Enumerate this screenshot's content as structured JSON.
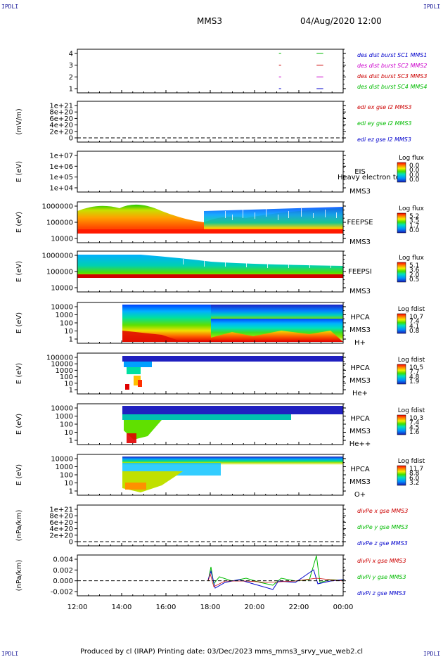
{
  "corner_marks": {
    "tl": "IPDLI",
    "tr": "IPDLI",
    "bl": "IPDLI",
    "br": "IPDLI"
  },
  "header": {
    "spacecraft": "MMS3",
    "datetime": "04/Aug/2020 12:00"
  },
  "footer": "Produced by cl (IRAP)   Printing date: 03/Dec/2023   mms_mms3_srvy_vue_web2.cl",
  "x_ticks": [
    "12:00",
    "14:00",
    "16:00",
    "18:00",
    "20:00",
    "22:00",
    "00:00"
  ],
  "chart_data": [
    {
      "id": "burst",
      "type": "line",
      "ylabel": "",
      "y_ticks": [
        "4",
        "3",
        "2",
        "1"
      ],
      "legend": [
        {
          "text": "des dist burst SC1 MMS1",
          "color": "#0000cc"
        },
        {
          "text": "des dist burst SC2 MMS2",
          "color": "#cc00cc"
        },
        {
          "text": "des dist burst SC3 MMS3",
          "color": "#cc0000"
        },
        {
          "text": "des dist burst SC4 MMS4",
          "color": "#00bb00"
        }
      ],
      "segments": [
        {
          "y": 4,
          "x": [
            21.1,
            21.2
          ],
          "color": "#00bb00"
        },
        {
          "y": 4,
          "x": [
            22.8,
            23.1
          ],
          "color": "#00bb00"
        },
        {
          "y": 3,
          "x": [
            21.1,
            21.2
          ],
          "color": "#cc0000"
        },
        {
          "y": 3,
          "x": [
            22.8,
            23.1
          ],
          "color": "#cc0000"
        },
        {
          "y": 2,
          "x": [
            21.1,
            21.2
          ],
          "color": "#cc00cc"
        },
        {
          "y": 2,
          "x": [
            22.8,
            23.1
          ],
          "color": "#cc00cc"
        },
        {
          "y": 1,
          "x": [
            21.1,
            21.2
          ],
          "color": "#0000cc"
        },
        {
          "y": 1,
          "x": [
            22.8,
            23.1
          ],
          "color": "#0000cc"
        }
      ]
    },
    {
      "id": "edi",
      "type": "line",
      "ylabel": "(mV/m)",
      "y_ticks": [
        "1e+21",
        "8e+20",
        "6e+20",
        "4e+20",
        "2e+20",
        "0"
      ],
      "legend": [
        {
          "text": "edi ex gse l2 MMS3",
          "color": "#cc0000"
        },
        {
          "text": "edi ey gse l2 MMS3",
          "color": "#00bb00"
        },
        {
          "text": "edi ez gse l2 MMS3",
          "color": "#0000cc"
        }
      ]
    },
    {
      "id": "eis",
      "type": "heatmap",
      "ylabel": "E (eV)",
      "y_ticks": [
        "1e+07",
        "1e+06",
        "1e+05",
        "1e+04"
      ],
      "labels": [
        "EIS",
        "Heavy electron to",
        "MMS3"
      ],
      "cbar_title": "Log flux",
      "cbar_ticks": [
        "0.0",
        "0.0",
        "0.0",
        "0.0"
      ]
    },
    {
      "id": "feepse",
      "type": "heatmap",
      "ylabel": "E (eV)",
      "y_ticks": [
        "1000000",
        "100000",
        "10000"
      ],
      "labels": [
        "FEEPSE",
        "MMS3"
      ],
      "cbar_title": "Log flux",
      "cbar_ticks": [
        "5.2",
        "3.5",
        "1.7",
        "0.0"
      ]
    },
    {
      "id": "feepsi",
      "type": "heatmap",
      "ylabel": "E (eV)",
      "y_ticks": [
        "1000000",
        "100000",
        "10000"
      ],
      "labels": [
        "FEEPSI",
        "MMS3"
      ],
      "cbar_title": "Log flux",
      "cbar_ticks": [
        "5.1",
        "3.6",
        "2.0",
        "0.5"
      ]
    },
    {
      "id": "hpca_h",
      "type": "heatmap",
      "ylabel": "E (eV)",
      "y_ticks": [
        "10000",
        "1000",
        "100",
        "10",
        "1"
      ],
      "labels": [
        "HPCA",
        "MMS3",
        "H+"
      ],
      "cbar_title": "Log fdist",
      "cbar_ticks": [
        "10.7",
        "7.4",
        "4.1",
        "0.8"
      ]
    },
    {
      "id": "hpca_he",
      "type": "heatmap",
      "ylabel": "E (eV)",
      "y_ticks": [
        "100000",
        "10000",
        "1000",
        "100",
        "10",
        "1"
      ],
      "labels": [
        "HPCA",
        "MMS3",
        "He+"
      ],
      "cbar_title": "Log fdist",
      "cbar_ticks": [
        "10.5",
        "7.7",
        "4.8",
        "1.9"
      ]
    },
    {
      "id": "hpca_hepp",
      "type": "heatmap",
      "ylabel": "E (eV)",
      "y_ticks": [
        "10000",
        "1000",
        "100",
        "10",
        "1"
      ],
      "labels": [
        "HPCA",
        "MMS3",
        "He++"
      ],
      "cbar_title": "Log fdist",
      "cbar_ticks": [
        "10.3",
        "7.4",
        "4.5",
        "1.6"
      ]
    },
    {
      "id": "hpca_o",
      "type": "heatmap",
      "ylabel": "E (eV)",
      "y_ticks": [
        "10000",
        "1000",
        "100",
        "10",
        "1"
      ],
      "labels": [
        "HPCA",
        "MMS3",
        "O+"
      ],
      "cbar_title": "Log fdist",
      "cbar_ticks": [
        "11.7",
        "8.8",
        "6.0",
        "3.2"
      ]
    },
    {
      "id": "divpe",
      "type": "line",
      "ylabel": "(nPa/km)",
      "y_ticks": [
        "1e+21",
        "8e+20",
        "6e+20",
        "4e+20",
        "2e+20",
        "0"
      ],
      "legend": [
        {
          "text": "divPe x gse MMS3",
          "color": "#cc0000"
        },
        {
          "text": "divPe y gse MMS3",
          "color": "#00bb00"
        },
        {
          "text": "divPe z gse MMS3",
          "color": "#0000cc"
        }
      ]
    },
    {
      "id": "divpi",
      "type": "line",
      "ylabel": "(nPa/km)",
      "y_ticks": [
        "0.004",
        "0.002",
        "0.000",
        "-0.002"
      ],
      "legend": [
        {
          "text": "divPi x gse MMS3",
          "color": "#cc0000"
        },
        {
          "text": "divPi y gse MMS3",
          "color": "#00bb00"
        },
        {
          "text": "divPi z gse MMS3",
          "color": "#0000cc"
        }
      ]
    }
  ]
}
